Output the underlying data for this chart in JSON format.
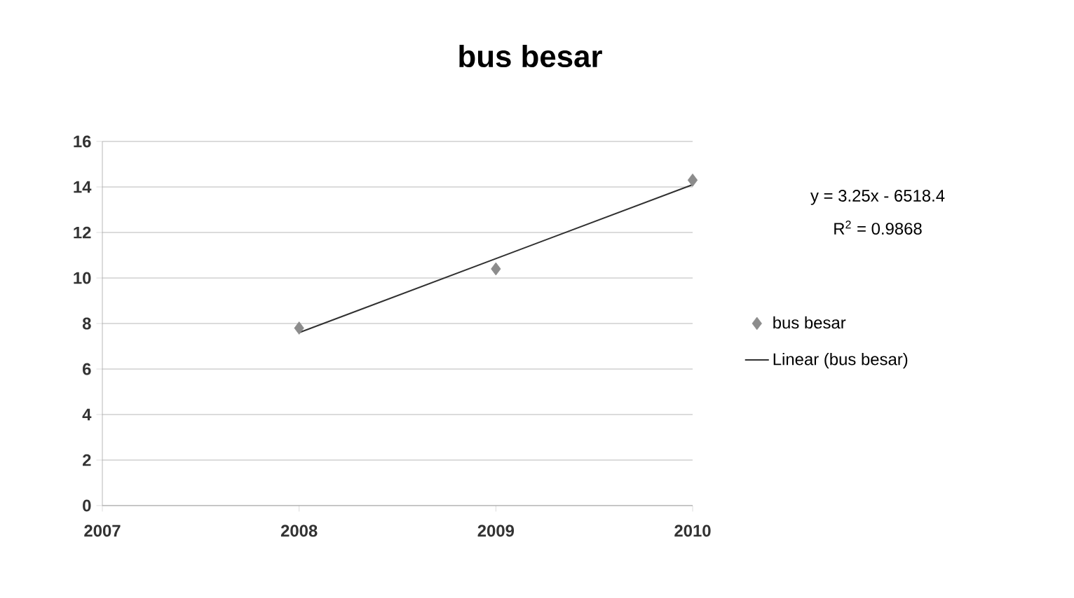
{
  "chart_data": {
    "type": "scatter",
    "title": "bus besar",
    "x": [
      2008,
      2009,
      2010
    ],
    "series": [
      {
        "name": "bus besar",
        "color": "#8c8c8c",
        "marker": "diamond",
        "values": [
          7.8,
          10.4,
          14.3
        ]
      },
      {
        "name": "Linear (bus besar)",
        "type": "line",
        "color": "#303030",
        "marker": "none",
        "line_style": "solid",
        "x": [
          2008,
          2010
        ],
        "values": [
          7.6,
          14.1
        ]
      }
    ],
    "annotations": [
      "y = 3.25x - 6518.4",
      "R$^{2}$ = 0.9868"
    ],
    "xlim": [
      2007,
      2010
    ],
    "xticks": [
      2007,
      2008,
      2009,
      2010
    ],
    "ylim": [
      0,
      16
    ],
    "yticks": [
      0,
      2,
      4,
      6,
      8,
      10,
      12,
      14,
      16
    ],
    "grid": "y",
    "legend": "right"
  }
}
